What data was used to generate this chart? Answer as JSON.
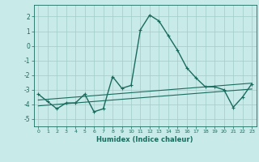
{
  "x": [
    0,
    1,
    2,
    3,
    4,
    5,
    6,
    7,
    8,
    9,
    10,
    11,
    12,
    13,
    14,
    15,
    16,
    17,
    18,
    19,
    20,
    21,
    22,
    23
  ],
  "y_main": [
    -3.3,
    -3.8,
    -4.3,
    -3.9,
    -3.9,
    -3.3,
    -4.5,
    -4.3,
    -2.1,
    -2.9,
    -2.7,
    1.1,
    2.1,
    1.7,
    0.7,
    -0.3,
    -1.5,
    -2.2,
    -2.8,
    -2.8,
    -3.0,
    -4.2,
    -3.5,
    -2.6
  ],
  "y_trend1": [
    -3.7,
    -3.65,
    -3.6,
    -3.55,
    -3.5,
    -3.45,
    -3.4,
    -3.35,
    -3.3,
    -3.25,
    -3.2,
    -3.15,
    -3.1,
    -3.05,
    -3.0,
    -2.95,
    -2.9,
    -2.85,
    -2.8,
    -2.75,
    -2.7,
    -2.65,
    -2.6,
    -2.55
  ],
  "y_trend2": [
    -4.1,
    -4.05,
    -4.0,
    -3.95,
    -3.9,
    -3.85,
    -3.8,
    -3.75,
    -3.7,
    -3.65,
    -3.6,
    -3.55,
    -3.5,
    -3.45,
    -3.4,
    -3.35,
    -3.3,
    -3.25,
    -3.2,
    -3.15,
    -3.1,
    -3.05,
    -3.0,
    -2.95
  ],
  "line_color": "#1a6b5e",
  "bg_color": "#c8eae8",
  "grid_color": "#a0ccc8",
  "xlabel": "Humidex (Indice chaleur)",
  "ylim": [
    -5.5,
    2.8
  ],
  "xlim": [
    -0.5,
    23.5
  ],
  "yticks": [
    -5,
    -4,
    -3,
    -2,
    -1,
    0,
    1,
    2
  ],
  "xticks": [
    0,
    1,
    2,
    3,
    4,
    5,
    6,
    7,
    8,
    9,
    10,
    11,
    12,
    13,
    14,
    15,
    16,
    17,
    18,
    19,
    20,
    21,
    22,
    23
  ]
}
